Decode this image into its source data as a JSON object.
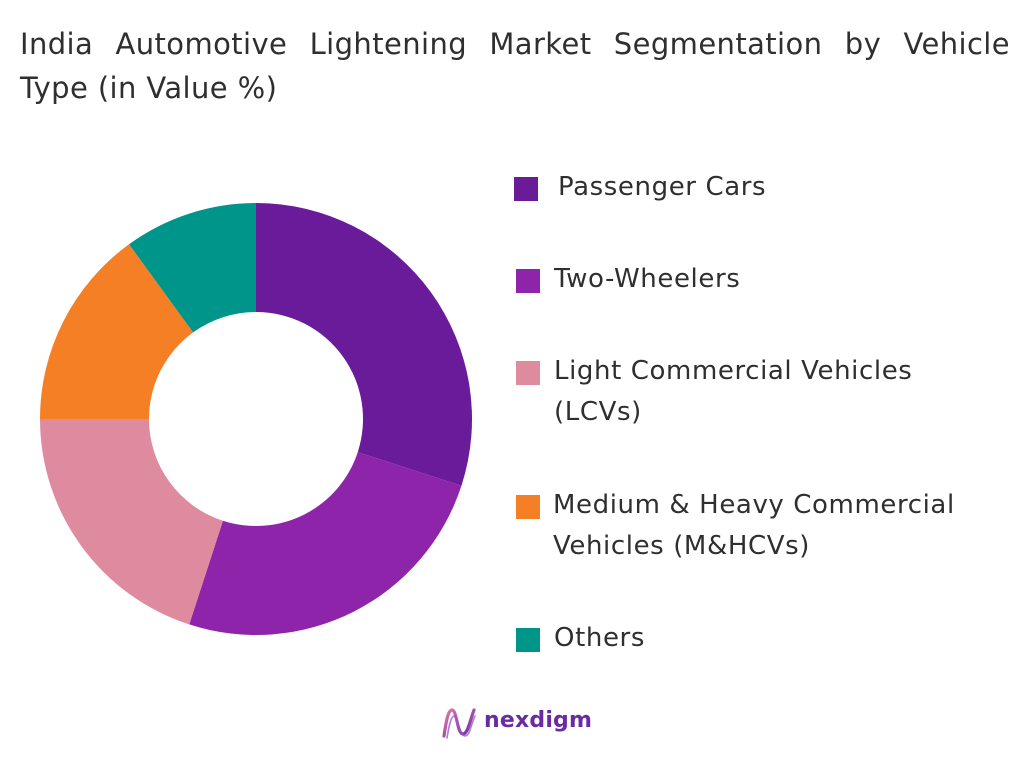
{
  "chart_data": {
    "type": "pie",
    "style": "donut",
    "title": "India Automotive Lightening Market Segmentation by Vehicle Type (in Value %)",
    "categories": [
      "Passenger Cars",
      "Two-Wheelers",
      "Light Commercial Vehicles (LCVs)",
      "Medium & Heavy Commercial Vehicles (M&HCVs)",
      "Others"
    ],
    "values": [
      30,
      25,
      20,
      15,
      10
    ],
    "colors": [
      "#6a1b9a",
      "#8e24aa",
      "#de8ba0",
      "#f57f25",
      "#00958a"
    ],
    "legend_position": "right"
  },
  "legend": {
    "items": [
      {
        "label": "Passenger Cars",
        "color": "#6a1b9a"
      },
      {
        "label": "Two-Wheelers",
        "color": "#8e24aa"
      },
      {
        "label": "Light Commercial Vehicles (LCVs)",
        "color": "#de8ba0"
      },
      {
        "label": "Medium & Heavy Commercial Vehicles (M&HCVs)",
        "color": "#f57f25"
      },
      {
        "label": "Others",
        "color": "#00958a"
      }
    ]
  },
  "logo": {
    "text": "nexdigm",
    "icon": "nexdigm-logo-icon",
    "color": "#6a2aa3"
  }
}
